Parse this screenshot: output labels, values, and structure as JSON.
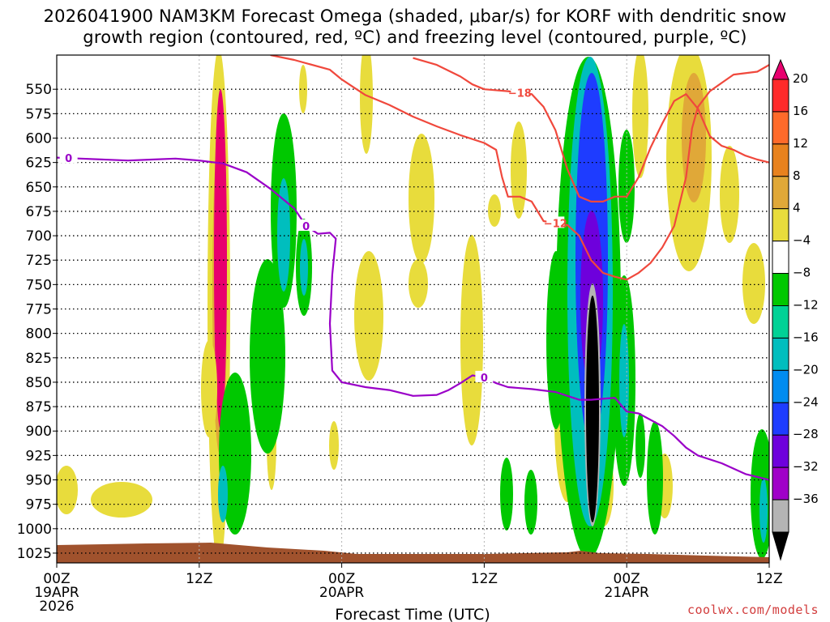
{
  "title": {
    "line1": "2026041900 NAM3KM Forecast Omega (shaded, μbar/s) for KORF with dendritic snow",
    "line2": "growth region (contoured, red, ºC) and freezing level (contoured, purple, ºC)"
  },
  "credit": "coolwx.com/models",
  "chart_data": {
    "type": "contour",
    "title": "2026041900 NAM3KM Forecast Omega (shaded, μbar/s) for KORF with dendritic snow growth region (contoured, red, ºC) and freezing level (contoured, purple, ºC)",
    "xlabel": "Forecast Time (UTC)",
    "ylabel": "",
    "xlim": [
      0,
      60
    ],
    "ylim": [
      1035,
      515
    ],
    "x_ticks": [
      {
        "hour": 0,
        "label": "00Z",
        "sub1": "19APR",
        "sub2": "2026"
      },
      {
        "hour": 12,
        "label": "12Z",
        "sub1": "",
        "sub2": ""
      },
      {
        "hour": 24,
        "label": "00Z",
        "sub1": "20APR",
        "sub2": ""
      },
      {
        "hour": 36,
        "label": "12Z",
        "sub1": "",
        "sub2": ""
      },
      {
        "hour": 48,
        "label": "00Z",
        "sub1": "21APR",
        "sub2": ""
      },
      {
        "hour": 60,
        "label": "12Z",
        "sub1": "",
        "sub2": ""
      }
    ],
    "y_ticks": [
      550,
      575,
      600,
      625,
      650,
      675,
      700,
      725,
      750,
      775,
      800,
      825,
      850,
      875,
      900,
      925,
      950,
      975,
      1000,
      1025
    ],
    "colorbar": {
      "labels": [
        "20",
        "16",
        "12",
        "8",
        "4",
        "−4",
        "−8",
        "−12",
        "−16",
        "−20",
        "−24",
        "−28",
        "−32",
        "−36"
      ],
      "colors": [
        "#e8006e",
        "#ff2a2a",
        "#ff6a2a",
        "#e8821e",
        "#e0a838",
        "#e8dc3c",
        "#ffffff",
        "#00c800",
        "#00d296",
        "#00bebe",
        "#008cf0",
        "#1e3cff",
        "#6e00dc",
        "#a000c8",
        "#b4b4b4",
        "#000000"
      ]
    },
    "contours": {
      "freezing_level_C": {
        "color": "#9a00c8",
        "label": "0",
        "points": [
          [
            0,
            620
          ],
          [
            2,
            621
          ],
          [
            6,
            623
          ],
          [
            8,
            622
          ],
          [
            10,
            621
          ],
          [
            11,
            622
          ],
          [
            12,
            623
          ],
          [
            14,
            626
          ],
          [
            16,
            635
          ],
          [
            18,
            652
          ],
          [
            20,
            672
          ],
          [
            21,
            690
          ],
          [
            22,
            698
          ],
          [
            23,
            697
          ],
          [
            23.5,
            703
          ],
          [
            23.2,
            740
          ],
          [
            23,
            790
          ],
          [
            23.2,
            838
          ],
          [
            24,
            850
          ],
          [
            26,
            855
          ],
          [
            28,
            858
          ],
          [
            30,
            864
          ],
          [
            32,
            863
          ],
          [
            33,
            858
          ],
          [
            34,
            851
          ],
          [
            35,
            843
          ],
          [
            36,
            845
          ],
          [
            37,
            851
          ],
          [
            38,
            855
          ],
          [
            40,
            857
          ],
          [
            42,
            860
          ],
          [
            44,
            868
          ],
          [
            45,
            868
          ],
          [
            46,
            867
          ],
          [
            47,
            866
          ],
          [
            48,
            880
          ],
          [
            49,
            882
          ],
          [
            51,
            895
          ],
          [
            52,
            905
          ],
          [
            53,
            917
          ],
          [
            54,
            925
          ],
          [
            56,
            933
          ],
          [
            58,
            944
          ],
          [
            60,
            950
          ]
        ]
      },
      "dgz_minus12_C": {
        "color": "#f0483c",
        "label": "−12",
        "points": [
          [
            18,
            515
          ],
          [
            20,
            520
          ],
          [
            23,
            530
          ],
          [
            24,
            540
          ],
          [
            25,
            548
          ],
          [
            26,
            556
          ],
          [
            28,
            566
          ],
          [
            30,
            578
          ],
          [
            32,
            588
          ],
          [
            34,
            597
          ],
          [
            36,
            605
          ],
          [
            37,
            612
          ],
          [
            37.5,
            640
          ],
          [
            38,
            660
          ],
          [
            39,
            660
          ],
          [
            40,
            665
          ],
          [
            41,
            685
          ],
          [
            42,
            687
          ],
          [
            43,
            689
          ],
          [
            44,
            700
          ],
          [
            45,
            725
          ],
          [
            46,
            738
          ],
          [
            47,
            742
          ],
          [
            48,
            745
          ],
          [
            49,
            738
          ],
          [
            50,
            728
          ],
          [
            51,
            712
          ],
          [
            52,
            690
          ],
          [
            53,
            640
          ],
          [
            53.5,
            590
          ],
          [
            54,
            568
          ],
          [
            55,
            552
          ],
          [
            57,
            535
          ],
          [
            59,
            532
          ],
          [
            60,
            525
          ]
        ]
      },
      "dgz_minus18_C": {
        "color": "#f0483c",
        "label": "−18",
        "points": [
          [
            30,
            518
          ],
          [
            32,
            525
          ],
          [
            34,
            537
          ],
          [
            35,
            545
          ],
          [
            36,
            550
          ],
          [
            38,
            552
          ],
          [
            40,
            555
          ],
          [
            41,
            568
          ],
          [
            42,
            592
          ],
          [
            43,
            632
          ],
          [
            44,
            660
          ],
          [
            45,
            665
          ],
          [
            46,
            665
          ],
          [
            47,
            660
          ],
          [
            48,
            660
          ],
          [
            49,
            640
          ],
          [
            50,
            610
          ],
          [
            51,
            585
          ],
          [
            52,
            562
          ],
          [
            53,
            555
          ],
          [
            54,
            570
          ],
          [
            55,
            598
          ],
          [
            56,
            608
          ],
          [
            57,
            612
          ],
          [
            58,
            618
          ],
          [
            59,
            622
          ],
          [
            60,
            625
          ]
        ]
      }
    },
    "surface_fill_color": "#a0522d",
    "omega_features": [
      {
        "hour": 13.5,
        "pressure_top": 520,
        "pressure_bottom": 870,
        "width_h": 1.3,
        "peak": 20,
        "sign": "positive"
      },
      {
        "hour": 18.2,
        "pressure_top": 580,
        "pressure_bottom": 820,
        "width_h": 1.6,
        "peak": -12,
        "sign": "negative"
      },
      {
        "hour": 45.5,
        "pressure_top": 515,
        "pressure_bottom": 1010,
        "width_h": 1.5,
        "peak": -24,
        "sign": "negative"
      },
      {
        "hour": 45.5,
        "pressure_top": 720,
        "pressure_bottom": 990,
        "width_h": 0.7,
        "peak": -36,
        "sign": "negative"
      },
      {
        "hour": 43.5,
        "pressure_top": 790,
        "pressure_bottom": 920,
        "width_h": 0.6,
        "peak": 12,
        "sign": "positive"
      },
      {
        "hour": 51.5,
        "pressure_top": 530,
        "pressure_bottom": 690,
        "width_h": 1.3,
        "peak": 8,
        "sign": "positive"
      }
    ]
  }
}
